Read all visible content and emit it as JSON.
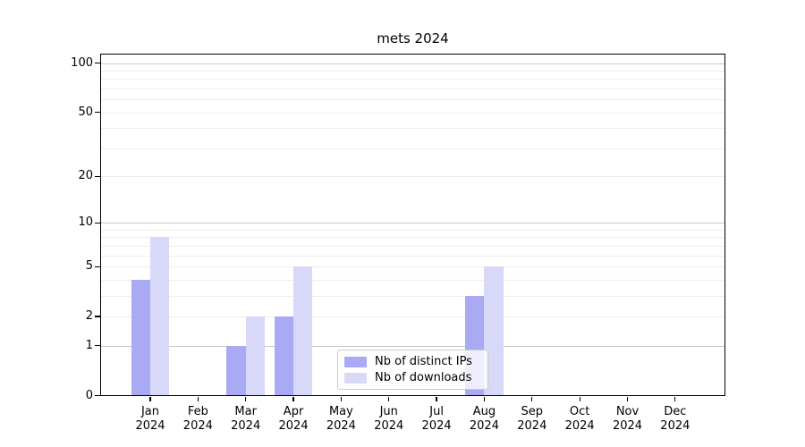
{
  "chart_data": {
    "type": "bar",
    "title": "mets 2024",
    "categories": [
      "Jan",
      "Feb",
      "Mar",
      "Apr",
      "May",
      "Jun",
      "Jul",
      "Aug",
      "Sep",
      "Oct",
      "Nov",
      "Dec"
    ],
    "category_year": "2024",
    "series": [
      {
        "name": "Nb of distinct IPs",
        "color": "#a9a9f4",
        "values": [
          4,
          0,
          1,
          2,
          0,
          0,
          0,
          3,
          0,
          0,
          0,
          0
        ]
      },
      {
        "name": "Nb of downloads",
        "color": "#d8d8f8",
        "values": [
          8,
          0,
          2,
          5,
          0,
          0,
          0,
          5,
          0,
          0,
          0,
          0
        ]
      }
    ],
    "y_scale": "log1p",
    "y_ticks": [
      100,
      50,
      20,
      10,
      5,
      2,
      1,
      0
    ],
    "ylim": [
      0,
      115
    ],
    "xlabel": "",
    "ylabel": "",
    "grid": true,
    "legend_position": "lower center",
    "colors": {
      "major_gridline": "#c8c8c8",
      "minor_gridline": "#ededed",
      "axis_spine": "#000000",
      "background": "#ffffff"
    }
  }
}
